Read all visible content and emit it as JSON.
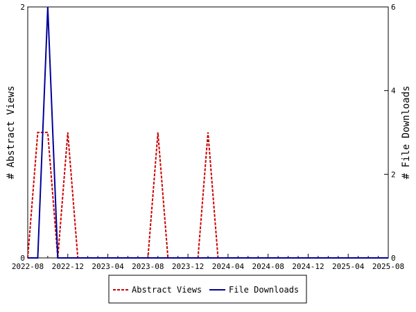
{
  "chart_data": {
    "type": "line",
    "left_axis": {
      "label": "# Abstract Views",
      "ylim": [
        0,
        2
      ],
      "ticks": [
        "0",
        "2"
      ]
    },
    "right_axis": {
      "label": "# File Downloads",
      "ylim": [
        0,
        6
      ],
      "ticks": [
        "0",
        "2",
        "4",
        "6"
      ]
    },
    "x_ticks": [
      "2022-08",
      "2022-12",
      "2023-04",
      "2023-08",
      "2023-12",
      "2024-04",
      "2024-08",
      "2024-12",
      "2025-04",
      "2025-08"
    ],
    "x_labels_shown": [
      "2022-08",
      "2022-12",
      "2023-04",
      "2023-08",
      "2023-12",
      "2024-04",
      "2024-08",
      "2024-12",
      "2025-04",
      "2025-08"
    ],
    "x": [
      "2022-08",
      "2022-09",
      "2022-10",
      "2022-11",
      "2022-12",
      "2023-01",
      "2023-02",
      "2023-03",
      "2023-04",
      "2023-05",
      "2023-06",
      "2023-07",
      "2023-08",
      "2023-09",
      "2023-10",
      "2023-11",
      "2023-12",
      "2024-01",
      "2024-02",
      "2024-03",
      "2024-04",
      "2024-05",
      "2024-06",
      "2024-07",
      "2024-08",
      "2024-09",
      "2024-10",
      "2024-11",
      "2024-12",
      "2025-01",
      "2025-02",
      "2025-03",
      "2025-04",
      "2025-05",
      "2025-06",
      "2025-07",
      "2025-08"
    ],
    "series": [
      {
        "name": "Abstract Views",
        "axis": "left",
        "color": "#cc0000",
        "dash": true,
        "values": [
          0,
          1,
          1,
          0,
          1,
          0,
          0,
          0,
          0,
          0,
          0,
          0,
          0,
          1,
          0,
          0,
          0,
          0,
          1,
          0,
          0,
          0,
          0,
          0,
          0,
          0,
          0,
          0,
          0,
          0,
          0,
          0,
          0,
          0,
          0,
          0,
          0
        ]
      },
      {
        "name": "File Downloads",
        "axis": "right",
        "color": "#000099",
        "dash": false,
        "values": [
          0,
          0,
          6,
          0,
          0,
          0,
          0,
          0,
          0,
          0,
          0,
          0,
          0,
          0,
          0,
          0,
          0,
          0,
          0,
          0,
          0,
          0,
          0,
          0,
          0,
          0,
          0,
          0,
          0,
          0,
          0,
          0,
          0,
          0,
          0,
          0,
          0
        ]
      }
    ],
    "legend": {
      "position": "bottom",
      "items": [
        "Abstract Views",
        "File Downloads"
      ]
    },
    "grid": false
  }
}
